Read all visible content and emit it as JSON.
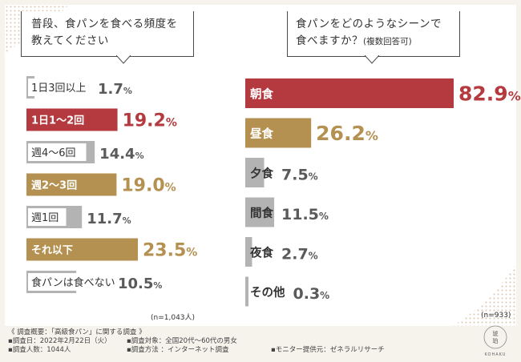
{
  "colors": {
    "red": "#b53a3f",
    "gold": "#b49150",
    "gray": "#b3b3b3",
    "num_red": "#b53a3f",
    "num_gold": "#b49150",
    "num_gray": "#5a5a5a"
  },
  "left": {
    "question_line1": "普段、食パンを食べる頻度を",
    "question_line2": "教えてください",
    "note": "(n=1,043人)"
  },
  "right": {
    "question_line1": "食パンをどのようなシーンで",
    "question_line2": "食べますか？",
    "question_suffix": "(複数回答可)",
    "note": "(n=933)"
  },
  "chart_data": [
    {
      "type": "bar",
      "orientation": "horizontal",
      "title": "普段、食パンを食べる頻度を教えてください",
      "categories": [
        "1日3回以上",
        "1日1〜2回",
        "週4〜6回",
        "週2〜3回",
        "週1回",
        "それ以下",
        "食パンは食べない"
      ],
      "values": [
        1.7,
        19.2,
        14.4,
        19.0,
        11.7,
        23.5,
        10.5
      ],
      "value_labels": [
        "1.7%",
        "19.2%",
        "14.4%",
        "19.0%",
        "11.7%",
        "23.5%",
        "10.5%"
      ],
      "highlight": [
        "gray",
        "red",
        "gray",
        "gold",
        "gray",
        "gold",
        "gray"
      ],
      "unit": "%",
      "n": "n=1,043人"
    },
    {
      "type": "bar",
      "orientation": "horizontal",
      "title": "食パンをどのようなシーンで食べますか？(複数回答可)",
      "categories": [
        "朝食",
        "昼食",
        "夕食",
        "間食",
        "夜食",
        "その他"
      ],
      "values": [
        82.9,
        26.2,
        7.5,
        11.5,
        2.7,
        0.3
      ],
      "value_labels": [
        "82.9%",
        "26.2%",
        "7.5%",
        "11.5%",
        "2.7%",
        "0.3%"
      ],
      "highlight": [
        "red",
        "gold",
        "gray",
        "gray",
        "gray",
        "gray"
      ],
      "unit": "%",
      "n": "n=933"
    }
  ],
  "footer": {
    "line1": "《 調査概要：「高級食パン」に関する調査 》",
    "date": "▪調査日：2022年2月22日（火）",
    "target": "▪調査対象：全国20代〜60代の男女",
    "count": "▪調査人数：1044人",
    "method": "▪調査方法 ：インターネット調査",
    "provider": "▪モニター提供元：ゼネラルリサーチ"
  },
  "logo": {
    "kanji1": "琥",
    "kanji2": "珀",
    "name": "KOHAKU"
  }
}
